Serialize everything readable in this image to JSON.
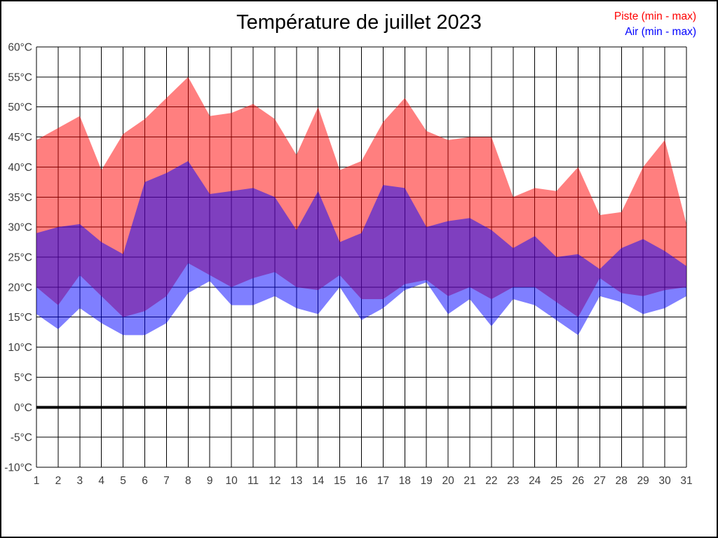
{
  "legend": {
    "piste_label": "Piste (min - max)",
    "air_label": "Air (min - max)"
  },
  "colors": {
    "piste": "#ff0000",
    "air": "#0000ff",
    "band_opacity": 0.5,
    "grid": "#000000",
    "zero_line": "#000000",
    "tick_text": "#3d3d3d",
    "background": "#ffffff",
    "border": "#000000"
  },
  "chart_data": {
    "type": "area",
    "title": "Température de juillet 2023",
    "x": [
      1,
      2,
      3,
      4,
      5,
      6,
      7,
      8,
      9,
      10,
      11,
      12,
      13,
      14,
      15,
      16,
      17,
      18,
      19,
      20,
      21,
      22,
      23,
      24,
      25,
      26,
      27,
      28,
      29,
      30,
      31
    ],
    "series": [
      {
        "name": "Piste (min - max)",
        "color": "#ff0000",
        "max": [
          44.5,
          46.5,
          48.5,
          39.5,
          45.5,
          48,
          51.5,
          55,
          48.5,
          49,
          50.5,
          48,
          42,
          50,
          39.5,
          41,
          47.5,
          51.5,
          46,
          44.5,
          45,
          45,
          35,
          36.5,
          36,
          40,
          32,
          32.5,
          40,
          44.5,
          30.5
        ],
        "min": [
          20,
          17,
          22,
          18.5,
          15,
          16,
          18.5,
          24,
          22,
          20,
          21.5,
          22.5,
          20,
          19.5,
          22,
          18,
          18,
          20.5,
          21.2,
          18.5,
          20,
          18,
          20,
          20,
          17.5,
          15,
          21.5,
          19,
          18.5,
          19.5,
          20
        ]
      },
      {
        "name": "Air (min - max)",
        "color": "#0000ff",
        "max": [
          29,
          30,
          30.5,
          27.5,
          25.5,
          37.5,
          39,
          41,
          35.5,
          36,
          36.5,
          35,
          29.5,
          36,
          27.5,
          29,
          37,
          36.5,
          30,
          31,
          31.5,
          29.5,
          26.5,
          28.5,
          25,
          25.5,
          23,
          26.5,
          28,
          26,
          23.5
        ],
        "min": [
          15.5,
          13,
          16.5,
          14,
          12,
          12,
          14,
          19,
          21,
          17,
          17,
          18.5,
          16.5,
          15.5,
          20,
          14.5,
          16.5,
          19.5,
          20.8,
          15.5,
          18,
          13.5,
          18,
          17,
          14.5,
          12,
          18.5,
          17.5,
          15.5,
          16.5,
          18.5
        ]
      }
    ],
    "ylim": [
      -10,
      60
    ],
    "yticks": [
      60,
      55,
      50,
      45,
      40,
      35,
      30,
      25,
      20,
      15,
      10,
      5,
      0,
      -5,
      -10
    ],
    "ytick_labels": [
      "60°C",
      "55°C",
      "50°C",
      "45°C",
      "40°C",
      "35°C",
      "30°C",
      "25°C",
      "20°C",
      "15°C",
      "10°C",
      "5°C",
      "0°C",
      "-5°C",
      "-10°C"
    ],
    "xtick_labels": [
      "1",
      "2",
      "3",
      "4",
      "5",
      "6",
      "7",
      "8",
      "9",
      "10",
      "11",
      "12",
      "13",
      "14",
      "15",
      "16",
      "17",
      "18",
      "19",
      "20",
      "21",
      "22",
      "23",
      "24",
      "25",
      "26",
      "27",
      "28",
      "29",
      "30",
      "31"
    ],
    "grid": true,
    "zero_line_emphasized": true,
    "legend_position": "top-right"
  }
}
